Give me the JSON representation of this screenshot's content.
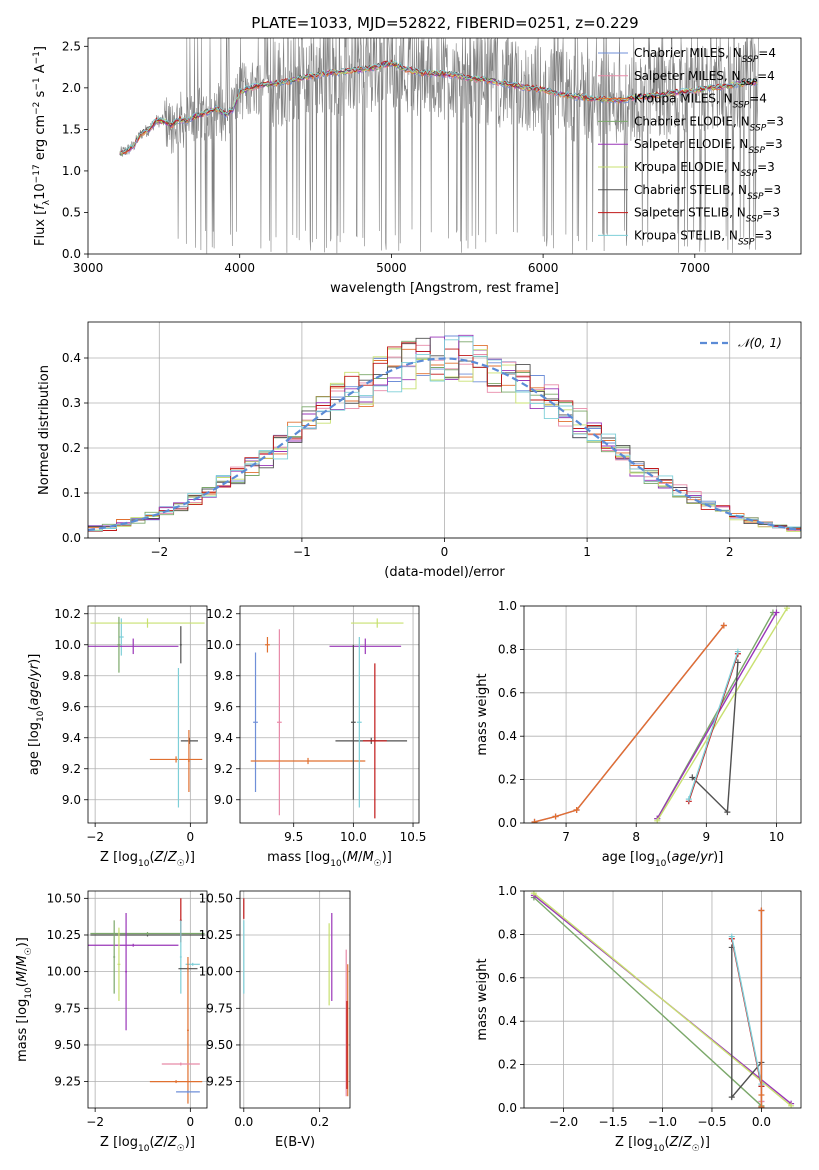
{
  "figure": {
    "title": "PLATE=1033, MJD=52822, FIBERID=0251, z=0.229"
  },
  "colors": {
    "spectrum": "#808080",
    "models": [
      "#6f8fd8",
      "#e88aa8",
      "#e07030",
      "#7ba86a",
      "#9a36b8",
      "#c8e070",
      "#505050",
      "#c01818",
      "#7ecfd8"
    ],
    "gaussian": "#5b8bd6"
  },
  "model_names": [
    "Chabrier MILES, N_SSP=4",
    "Salpeter MILES, N_SSP=4",
    "Kroupa MILES, N_SSP=4",
    "Chabrier ELODIE, N_SSP=3",
    "Salpeter ELODIE, N_SSP=3",
    "Kroupa ELODIE, N_SSP=3",
    "Chabrier STELIB, N_SSP=3",
    "Salpeter STELIB, N_SSP=3",
    "Kroupa STELIB, N_SSP=3"
  ],
  "chart_data": [
    {
      "id": "spectrum",
      "type": "line",
      "xlabel": "wavelength [Angstrom, rest frame]",
      "ylabel": "Flux [f_λ 10^-17 erg cm^-2 s^-1 A^-1]",
      "xlim": [
        3000,
        7700
      ],
      "ylim": [
        0,
        2.6
      ],
      "xticks": [
        3000,
        4000,
        5000,
        6000,
        7000
      ],
      "yticks": [
        0.0,
        0.5,
        1.0,
        1.5,
        2.0,
        2.5
      ],
      "legend": [
        {
          "base": "Chabrier MILES, N",
          "sub": "SSP",
          "tail": "=4"
        },
        {
          "base": "Salpeter MILES, N",
          "sub": "SSP",
          "tail": "=4"
        },
        {
          "base": "Kroupa MILES, N",
          "sub": "SSP",
          "tail": "=4"
        },
        {
          "base": "Chabrier ELODIE, N",
          "sub": "SSP",
          "tail": "=3"
        },
        {
          "base": "Salpeter ELODIE, N",
          "sub": "SSP",
          "tail": "=3"
        },
        {
          "base": "Kroupa ELODIE, N",
          "sub": "SSP",
          "tail": "=3"
        },
        {
          "base": "Chabrier STELIB, N",
          "sub": "SSP",
          "tail": "=3"
        },
        {
          "base": "Salpeter STELIB, N",
          "sub": "SSP",
          "tail": "=3"
        },
        {
          "base": "Kroupa STELIB, N",
          "sub": "SSP",
          "tail": "=3"
        }
      ],
      "model_curve": {
        "x": [
          3200,
          3260,
          3300,
          3350,
          3400,
          3450,
          3500,
          3550,
          3600,
          3650,
          3700,
          3750,
          3800,
          3850,
          3900,
          3950,
          4000,
          4100,
          4200,
          4300,
          4400,
          4500,
          4600,
          4700,
          4800,
          4900,
          5000,
          5100,
          5200,
          5300,
          5400,
          5500,
          5600,
          5700,
          5800,
          5900,
          6000,
          6100,
          6200,
          6300,
          6400,
          6500,
          6600,
          6700,
          6800,
          6900,
          7000,
          7100,
          7200,
          7300,
          7400
        ],
        "y": [
          1.2,
          1.25,
          1.3,
          1.45,
          1.5,
          1.6,
          1.6,
          1.55,
          1.62,
          1.6,
          1.65,
          1.68,
          1.72,
          1.75,
          1.68,
          1.72,
          1.95,
          2.02,
          2.05,
          2.07,
          2.12,
          2.15,
          2.18,
          2.2,
          2.22,
          2.25,
          2.3,
          2.22,
          2.18,
          2.17,
          2.16,
          2.12,
          2.1,
          2.07,
          2.03,
          2.0,
          1.98,
          1.93,
          1.9,
          1.88,
          1.86,
          1.85,
          1.88,
          1.9,
          1.92,
          1.95,
          1.97,
          2.0,
          2.02,
          2.05,
          2.07
        ]
      }
    },
    {
      "id": "residuals",
      "type": "step",
      "xlabel": "(data-model)/error",
      "ylabel": "Normed distribution",
      "xlim": [
        -2.5,
        2.5
      ],
      "ylim": [
        0,
        0.48
      ],
      "xticks": [
        -2,
        -1,
        0,
        1,
        2
      ],
      "yticks": [
        0.0,
        0.1,
        0.2,
        0.3,
        0.4
      ],
      "legend_label": "N(0,1)",
      "gaussian": {
        "mean": 0,
        "sigma": 1
      }
    },
    {
      "id": "age-vs-Z",
      "type": "errorbar",
      "xlabel": "Z [log10(Z/Z☉)]",
      "ylabel": "age [log10(age/yr)]",
      "xlim": [
        -2.15,
        0.35
      ],
      "ylim": [
        8.85,
        10.25
      ],
      "xticks": [
        -2,
        0
      ],
      "yticks": [
        9.0,
        9.2,
        9.4,
        9.6,
        9.8,
        10.0,
        10.2
      ],
      "points": [
        {
          "c": 8,
          "x": -1.45,
          "y": 10.05,
          "xe": 0.05,
          "ye": 0.12
        },
        {
          "c": 5,
          "x": -0.9,
          "y": 10.14,
          "xe": 1.2,
          "ye": 0.03
        },
        {
          "c": 4,
          "x": -1.2,
          "y": 9.99,
          "xe": 0.95,
          "ye": 0.05
        },
        {
          "c": 3,
          "x": -1.5,
          "y": 10.0,
          "xe": 0.03,
          "ye": 0.18
        },
        {
          "c": 6,
          "x": -0.2,
          "y": 10.0,
          "xe": 0.02,
          "ye": 0.12
        },
        {
          "c": 2,
          "x": -0.3,
          "y": 9.26,
          "xe": 0.55,
          "ye": 0.02
        },
        {
          "c": 6,
          "x": -0.02,
          "y": 9.38,
          "xe": 0.18,
          "ye": 0.02
        },
        {
          "c": 2,
          "x": -0.03,
          "y": 9.25,
          "xe": 0.02,
          "ye": 0.2
        },
        {
          "c": 8,
          "x": -0.25,
          "y": 9.4,
          "xe": 0.02,
          "ye": 0.45
        }
      ]
    },
    {
      "id": "age-vs-mass",
      "type": "errorbar",
      "xlabel": "mass [log10(M/M☉)]",
      "ylabel": "",
      "xlim": [
        9.05,
        10.55
      ],
      "ylim": [
        8.85,
        10.25
      ],
      "xticks": [
        9.5,
        10.0,
        10.5
      ],
      "yticks": [
        9.0,
        9.2,
        9.4,
        9.6,
        9.8,
        10.0,
        10.2
      ],
      "points": [
        {
          "c": 5,
          "x": 10.2,
          "y": 10.14,
          "xe": 0.22,
          "ye": 0.03
        },
        {
          "c": 4,
          "x": 10.1,
          "y": 9.99,
          "xe": 0.3,
          "ye": 0.05
        },
        {
          "c": 2,
          "x": 9.28,
          "y": 10.0,
          "xe": 0.02,
          "ye": 0.05
        },
        {
          "c": 0,
          "x": 9.18,
          "y": 9.5,
          "xe": 0.02,
          "ye": 0.45
        },
        {
          "c": 1,
          "x": 9.38,
          "y": 9.5,
          "xe": 0.02,
          "ye": 0.6
        },
        {
          "c": 2,
          "x": 9.62,
          "y": 9.25,
          "xe": 0.48,
          "ye": 0.02
        },
        {
          "c": 6,
          "x": 10.15,
          "y": 9.38,
          "xe": 0.3,
          "ye": 0.02
        },
        {
          "c": 7,
          "x": 10.18,
          "y": 9.38,
          "xe": 0.1,
          "ye": 0.5
        },
        {
          "c": 8,
          "x": 10.05,
          "y": 9.5,
          "xe": 0.02,
          "ye": 0.55
        },
        {
          "c": 6,
          "x": 10.0,
          "y": 9.5,
          "xe": 0.02,
          "ye": 0.5
        }
      ]
    },
    {
      "id": "mass-weight-vs-age",
      "type": "line",
      "xlabel": "age [log10(age/yr)]",
      "ylabel": "mass weight",
      "xlim": [
        6.4,
        10.35
      ],
      "ylim": [
        0,
        1.0
      ],
      "xticks": [
        7,
        8,
        9,
        10
      ],
      "yticks": [
        0.0,
        0.2,
        0.4,
        0.6,
        0.8,
        1.0
      ],
      "series": [
        {
          "c": 0,
          "x": [
            6.55,
            6.85,
            7.15,
            9.25
          ],
          "y": [
            0.005,
            0.03,
            0.06,
            0.91
          ]
        },
        {
          "c": 1,
          "x": [
            6.55,
            6.85,
            7.15,
            9.25
          ],
          "y": [
            0.005,
            0.03,
            0.06,
            0.91
          ]
        },
        {
          "c": 2,
          "x": [
            6.55,
            6.85,
            7.15,
            9.25
          ],
          "y": [
            0.005,
            0.03,
            0.06,
            0.91
          ]
        },
        {
          "c": 3,
          "x": [
            8.3,
            9.95
          ],
          "y": [
            0.02,
            0.97
          ]
        },
        {
          "c": 4,
          "x": [
            8.3,
            10.0
          ],
          "y": [
            0.02,
            0.97
          ]
        },
        {
          "c": 5,
          "x": [
            8.3,
            10.15
          ],
          "y": [
            0.01,
            0.99
          ]
        },
        {
          "c": 6,
          "x": [
            8.8,
            9.3,
            9.45
          ],
          "y": [
            0.21,
            0.05,
            0.74
          ]
        },
        {
          "c": 7,
          "x": [
            8.75,
            9.45
          ],
          "y": [
            0.1,
            0.78
          ]
        },
        {
          "c": 8,
          "x": [
            8.75,
            9.45
          ],
          "y": [
            0.11,
            0.79
          ]
        }
      ]
    },
    {
      "id": "mass-vs-Z",
      "type": "errorbar",
      "xlabel": "Z [log10(Z/Z☉)]",
      "ylabel": "mass [log10(M/M☉)]",
      "xlim": [
        -2.15,
        0.35
      ],
      "ylim": [
        9.07,
        10.55
      ],
      "xticks": [
        -2,
        0
      ],
      "yticks": [
        9.25,
        9.5,
        9.75,
        10.0,
        10.25,
        10.5
      ],
      "points": [
        {
          "c": 6,
          "x": -0.9,
          "y": 10.25,
          "xe": 1.2,
          "ye": 0.01
        },
        {
          "c": 3,
          "x": -0.9,
          "y": 10.26,
          "xe": 1.2,
          "ye": 0.01
        },
        {
          "c": 4,
          "x": -1.2,
          "y": 10.18,
          "xe": 0.95,
          "ye": 0.01
        },
        {
          "c": 5,
          "x": -1.5,
          "y": 10.05,
          "xe": 0.03,
          "ye": 0.25
        },
        {
          "c": 3,
          "x": -1.6,
          "y": 10.1,
          "xe": 0.02,
          "ye": 0.25
        },
        {
          "c": 4,
          "x": -1.35,
          "y": 10.0,
          "xe": 0.02,
          "ye": 0.4
        },
        {
          "c": 7,
          "x": -0.2,
          "y": 10.35,
          "xe": 0.02,
          "ye": 0.15
        },
        {
          "c": 8,
          "x": -0.2,
          "y": 10.1,
          "xe": 0.02,
          "ye": 0.25
        },
        {
          "c": 6,
          "x": -0.05,
          "y": 10.02,
          "xe": 0.2,
          "ye": 0.01
        },
        {
          "c": 8,
          "x": 0.05,
          "y": 10.05,
          "xe": 0.15,
          "ye": 0.01
        },
        {
          "c": 2,
          "x": -0.05,
          "y": 9.6,
          "xe": 0.02,
          "ye": 0.5
        },
        {
          "c": 1,
          "x": -0.2,
          "y": 9.37,
          "xe": 0.4,
          "ye": 0.01
        },
        {
          "c": 2,
          "x": -0.3,
          "y": 9.25,
          "xe": 0.55,
          "ye": 0.01
        },
        {
          "c": 0,
          "x": -0.05,
          "y": 9.18,
          "xe": 0.25,
          "ye": 0.01
        }
      ]
    },
    {
      "id": "mass-vs-EBV",
      "type": "errorbar",
      "xlabel": "E(B-V)",
      "ylabel": "",
      "xlim": [
        -0.01,
        0.28
      ],
      "ylim": [
        9.07,
        10.55
      ],
      "xticks": [
        0.0,
        0.2
      ],
      "yticks": [
        9.25,
        9.5,
        9.75,
        10.0,
        10.25,
        10.5
      ],
      "points": [
        {
          "c": 7,
          "x": 0.0,
          "y": 10.43,
          "xe": 0.0,
          "ye": 0.07
        },
        {
          "c": 8,
          "x": 0.0,
          "y": 10.1,
          "xe": 0.0,
          "ye": 0.25
        },
        {
          "c": 5,
          "x": 0.225,
          "y": 10.05,
          "xe": 0.0,
          "ye": 0.28
        },
        {
          "c": 4,
          "x": 0.232,
          "y": 10.1,
          "xe": 0.0,
          "ye": 0.3
        },
        {
          "c": 1,
          "x": 0.27,
          "y": 9.65,
          "xe": 0.0,
          "ye": 0.5
        },
        {
          "c": 2,
          "x": 0.274,
          "y": 9.6,
          "xe": 0.0,
          "ye": 0.45
        },
        {
          "c": 7,
          "x": 0.272,
          "y": 9.5,
          "xe": 0.0,
          "ye": 0.3
        }
      ]
    },
    {
      "id": "mass-weight-vs-Z",
      "type": "line",
      "xlabel": "Z [log10(Z/Z☉)]",
      "ylabel": "mass weight",
      "xlim": [
        -2.4,
        0.4
      ],
      "ylim": [
        0,
        1.0
      ],
      "xticks": [
        -2.0,
        -1.5,
        -1.0,
        -0.5,
        0.0
      ],
      "yticks": [
        0.0,
        0.2,
        0.4,
        0.6,
        0.8,
        1.0
      ],
      "series": [
        {
          "c": 3,
          "x": [
            -2.3,
            0.0
          ],
          "y": [
            0.97,
            0.01
          ]
        },
        {
          "c": 4,
          "x": [
            -2.3,
            0.3
          ],
          "y": [
            0.98,
            0.02
          ]
        },
        {
          "c": 5,
          "x": [
            -2.3,
            0.3
          ],
          "y": [
            0.99,
            0.01
          ]
        },
        {
          "c": 6,
          "x": [
            -0.3,
            -0.3,
            0.0,
            0.0
          ],
          "y": [
            0.74,
            0.05,
            0.21,
            0.1
          ]
        },
        {
          "c": 7,
          "x": [
            -0.3,
            0.0,
            0.0
          ],
          "y": [
            0.78,
            0.1,
            0.0
          ]
        },
        {
          "c": 8,
          "x": [
            -0.3,
            0.0,
            0.0
          ],
          "y": [
            0.79,
            0.11,
            0.0
          ]
        },
        {
          "c": 0,
          "x": [
            0.0,
            0.0,
            0.0
          ],
          "y": [
            0.005,
            0.91,
            0.03
          ]
        },
        {
          "c": 1,
          "x": [
            0.0,
            0.0,
            0.0
          ],
          "y": [
            0.005,
            0.91,
            0.03
          ]
        },
        {
          "c": 2,
          "x": [
            0.0,
            0.0,
            0.0
          ],
          "y": [
            0.005,
            0.91,
            0.06
          ]
        }
      ]
    }
  ]
}
